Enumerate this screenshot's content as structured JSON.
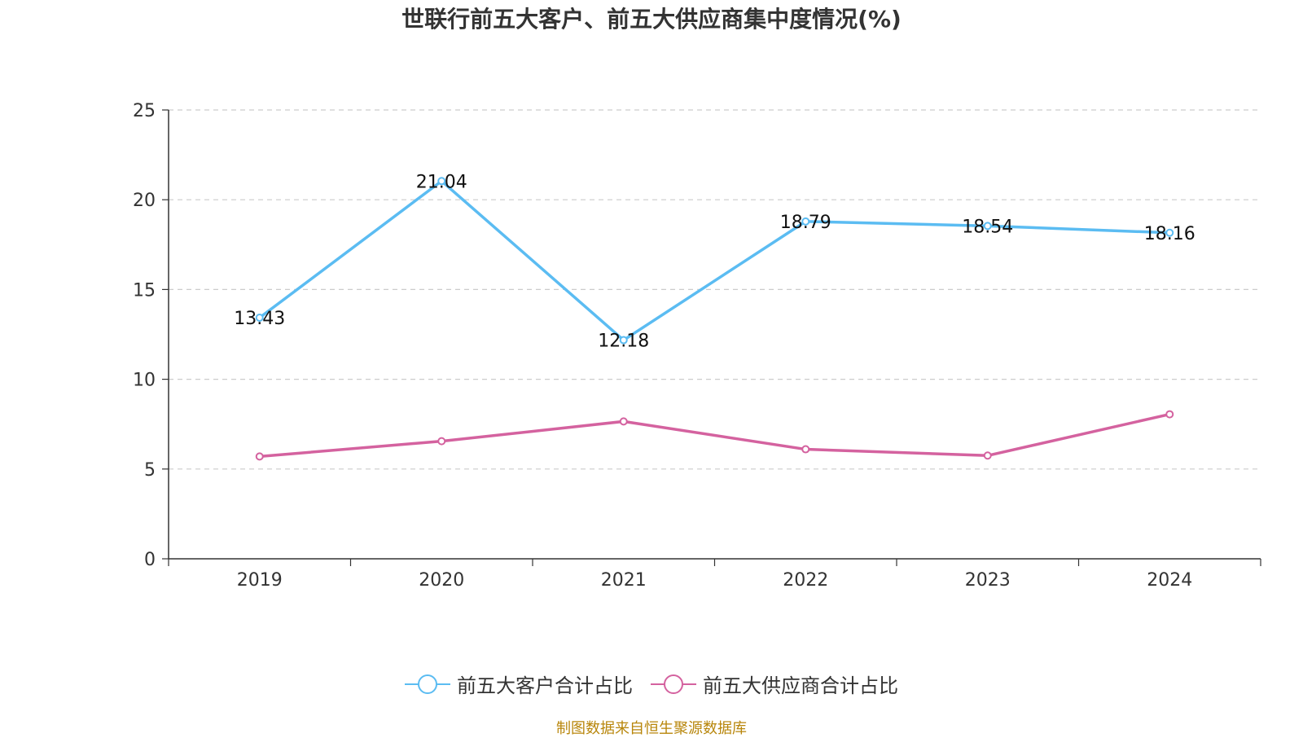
{
  "chart_data": {
    "type": "line",
    "title": "世联行前五大客户、前五大供应商集中度情况(%)",
    "categories": [
      "2019",
      "2020",
      "2021",
      "2022",
      "2023",
      "2024"
    ],
    "series": [
      {
        "name": "前五大客户合计占比",
        "values": [
          13.43,
          21.04,
          12.18,
          18.79,
          18.54,
          18.16
        ],
        "show_labels": true,
        "color": "#5bbcf2"
      },
      {
        "name": "前五大供应商合计占比",
        "values": [
          5.7,
          6.55,
          7.65,
          6.1,
          5.75,
          8.05
        ],
        "show_labels": false,
        "color": "#d4629f"
      }
    ],
    "ylim": [
      0,
      25
    ],
    "yticks": [
      "0",
      "5",
      "10",
      "15",
      "20",
      "25"
    ],
    "grid": true,
    "legend_position": "bottom"
  },
  "source_note": "制图数据来自恒生聚源数据库"
}
